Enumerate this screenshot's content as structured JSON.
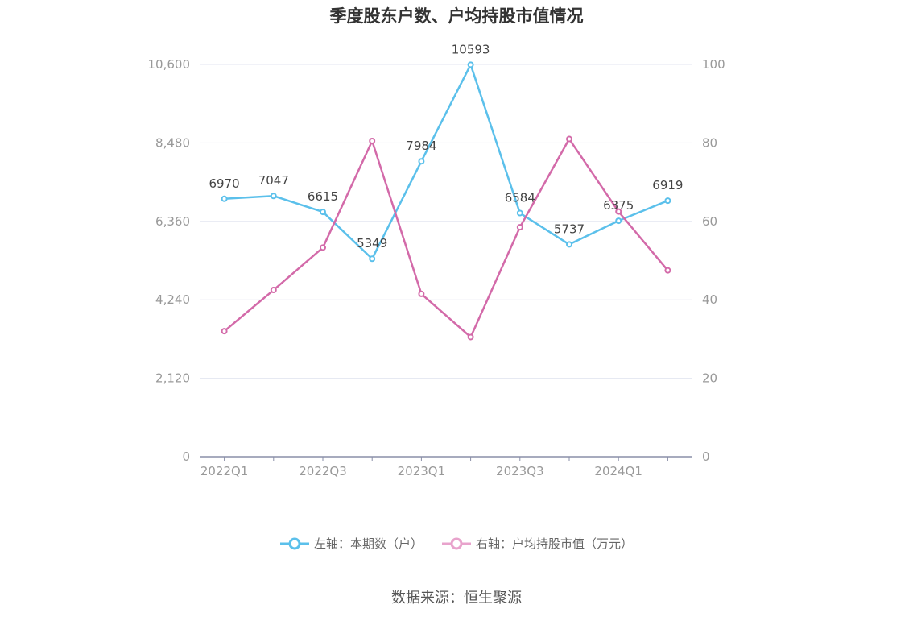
{
  "chart_data": {
    "type": "line",
    "title": "季度股东户数、户均持股市值情况",
    "categories": [
      "2022Q1",
      "2022Q2",
      "2022Q3",
      "2022Q4",
      "2023Q1",
      "2023Q2",
      "2023Q3",
      "2023Q4",
      "2024Q1",
      "2024Q2"
    ],
    "x_tick_labels": [
      "2022Q1",
      "",
      "2022Q3",
      "",
      "2023Q1",
      "",
      "2023Q3",
      "",
      "2024Q1",
      ""
    ],
    "left_axis": {
      "ylim": [
        0,
        10600
      ],
      "ticks": [
        "0",
        "2,120",
        "4,240",
        "6,360",
        "8,480",
        "10,600"
      ]
    },
    "right_axis": {
      "ylim": [
        0,
        100
      ],
      "ticks": [
        "0",
        "20",
        "40",
        "60",
        "80",
        "100"
      ]
    },
    "series": [
      {
        "name": "左轴：本期数（户）",
        "axis": "left",
        "color": "#5bc0eb",
        "values": [
          6970,
          7047,
          6615,
          5349,
          7984,
          10593,
          6584,
          5737,
          6375,
          6919
        ],
        "labels": [
          "6970",
          "7047",
          "6615",
          "5349",
          "7984",
          "10593",
          "6584",
          "5737",
          "6375",
          "6919"
        ]
      },
      {
        "name": "右轴：户均持股市值（万元）",
        "axis": "right",
        "color": "#d36aa9",
        "values": [
          32.0,
          42.5,
          53.3,
          80.5,
          41.5,
          30.5,
          58.5,
          81.0,
          62.5,
          47.5
        ]
      }
    ],
    "grid": true,
    "legend_position": "bottom"
  },
  "source": "数据来源：恒生聚源"
}
